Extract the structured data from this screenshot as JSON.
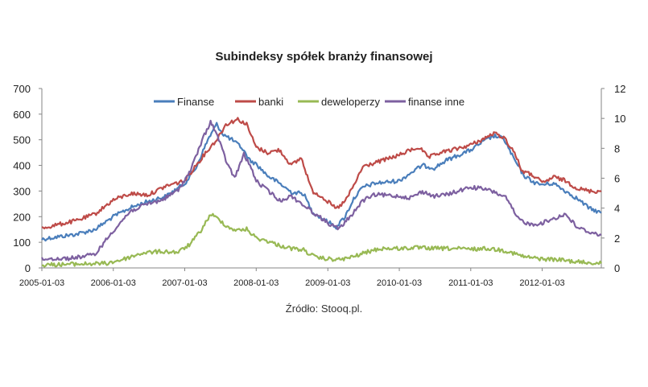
{
  "chart_data": {
    "type": "line",
    "title": "Subindeksy spółek branży finansowej",
    "source": "Źródło: Stooq.pl.",
    "xlabel": "",
    "ylabel": "",
    "x_ticks": [
      "2005-01-03",
      "2006-01-03",
      "2007-01-03",
      "2008-01-03",
      "2009-01-03",
      "2010-01-03",
      "2011-01-03",
      "2012-01-03"
    ],
    "y_left_ticks": [
      "0",
      "100",
      "200",
      "300",
      "400",
      "500",
      "600",
      "700"
    ],
    "y_right_ticks": [
      "0",
      "2",
      "4",
      "6",
      "8",
      "10",
      "12"
    ],
    "ylim_left": [
      0,
      700
    ],
    "ylim_right": [
      0,
      12
    ],
    "xlim": [
      "2005-01-03",
      "2012-10-31"
    ],
    "legend_position": "top-center",
    "grid": false,
    "series": [
      {
        "name": "Finanse",
        "axis": "left",
        "color": "#4a7ebb",
        "points": [
          [
            "2005-01-03",
            112
          ],
          [
            "2005-04-01",
            122
          ],
          [
            "2005-07-01",
            132
          ],
          [
            "2005-10-01",
            150
          ],
          [
            "2006-01-03",
            200
          ],
          [
            "2006-04-01",
            235
          ],
          [
            "2006-07-01",
            260
          ],
          [
            "2006-10-01",
            280
          ],
          [
            "2007-01-03",
            330
          ],
          [
            "2007-03-01",
            390
          ],
          [
            "2007-05-01",
            500
          ],
          [
            "2007-06-15",
            560
          ],
          [
            "2007-07-20",
            520
          ],
          [
            "2007-09-01",
            500
          ],
          [
            "2007-10-20",
            470
          ],
          [
            "2007-12-01",
            420
          ],
          [
            "2008-01-03",
            405
          ],
          [
            "2008-03-01",
            360
          ],
          [
            "2008-05-01",
            330
          ],
          [
            "2008-07-01",
            295
          ],
          [
            "2008-09-01",
            290
          ],
          [
            "2008-10-15",
            220
          ],
          [
            "2008-12-01",
            195
          ],
          [
            "2009-02-15",
            160
          ],
          [
            "2009-04-01",
            200
          ],
          [
            "2009-05-15",
            270
          ],
          [
            "2009-07-01",
            315
          ],
          [
            "2009-09-01",
            330
          ],
          [
            "2010-01-03",
            340
          ],
          [
            "2010-03-01",
            370
          ],
          [
            "2010-05-01",
            400
          ],
          [
            "2010-07-01",
            390
          ],
          [
            "2010-09-01",
            420
          ],
          [
            "2010-11-01",
            440
          ],
          [
            "2011-01-03",
            460
          ],
          [
            "2011-03-01",
            490
          ],
          [
            "2011-05-01",
            515
          ],
          [
            "2011-06-20",
            505
          ],
          [
            "2011-08-15",
            420
          ],
          [
            "2011-10-01",
            360
          ],
          [
            "2011-12-01",
            330
          ],
          [
            "2012-01-03",
            325
          ],
          [
            "2012-03-01",
            330
          ],
          [
            "2012-05-01",
            300
          ],
          [
            "2012-07-01",
            270
          ],
          [
            "2012-09-01",
            232
          ],
          [
            "2012-10-31",
            215
          ]
        ]
      },
      {
        "name": "banki",
        "axis": "left",
        "color": "#be4b48",
        "points": [
          [
            "2005-01-03",
            155
          ],
          [
            "2005-04-01",
            170
          ],
          [
            "2005-07-01",
            185
          ],
          [
            "2005-10-01",
            210
          ],
          [
            "2006-01-03",
            265
          ],
          [
            "2006-04-01",
            290
          ],
          [
            "2006-07-01",
            285
          ],
          [
            "2006-10-01",
            320
          ],
          [
            "2007-01-03",
            340
          ],
          [
            "2007-03-01",
            400
          ],
          [
            "2007-05-01",
            460
          ],
          [
            "2007-06-15",
            500
          ],
          [
            "2007-08-01",
            560
          ],
          [
            "2007-10-01",
            580
          ],
          [
            "2007-11-15",
            560
          ],
          [
            "2008-01-03",
            470
          ],
          [
            "2008-03-01",
            450
          ],
          [
            "2008-05-01",
            460
          ],
          [
            "2008-07-01",
            400
          ],
          [
            "2008-08-20",
            430
          ],
          [
            "2008-10-15",
            300
          ],
          [
            "2008-12-01",
            280
          ],
          [
            "2009-02-15",
            230
          ],
          [
            "2009-04-01",
            260
          ],
          [
            "2009-05-15",
            320
          ],
          [
            "2009-07-01",
            395
          ],
          [
            "2009-09-01",
            410
          ],
          [
            "2010-01-03",
            440
          ],
          [
            "2010-03-01",
            460
          ],
          [
            "2010-04-15",
            470
          ],
          [
            "2010-06-01",
            430
          ],
          [
            "2010-08-01",
            450
          ],
          [
            "2010-10-01",
            460
          ],
          [
            "2011-01-03",
            480
          ],
          [
            "2011-03-01",
            500
          ],
          [
            "2011-05-01",
            525
          ],
          [
            "2011-06-20",
            510
          ],
          [
            "2011-08-15",
            450
          ],
          [
            "2011-09-20",
            380
          ],
          [
            "2011-12-01",
            355
          ],
          [
            "2012-01-03",
            330
          ],
          [
            "2012-03-01",
            355
          ],
          [
            "2012-05-01",
            340
          ],
          [
            "2012-07-01",
            310
          ],
          [
            "2012-09-01",
            300
          ],
          [
            "2012-10-31",
            298
          ]
        ]
      },
      {
        "name": "deweloperzy",
        "axis": "right",
        "color": "#98b954",
        "points": [
          [
            "2005-01-03",
            0.2
          ],
          [
            "2005-06-01",
            0.25
          ],
          [
            "2005-12-01",
            0.3
          ],
          [
            "2006-03-01",
            0.6
          ],
          [
            "2006-06-01",
            1.0
          ],
          [
            "2006-09-01",
            1.1
          ],
          [
            "2006-12-01",
            1.05
          ],
          [
            "2007-02-01",
            1.6
          ],
          [
            "2007-04-01",
            2.6
          ],
          [
            "2007-05-15",
            3.6
          ],
          [
            "2007-07-01",
            3.2
          ],
          [
            "2007-08-15",
            2.7
          ],
          [
            "2007-10-01",
            2.5
          ],
          [
            "2007-11-15",
            2.6
          ],
          [
            "2008-01-03",
            2.0
          ],
          [
            "2008-03-01",
            1.8
          ],
          [
            "2008-05-01",
            1.5
          ],
          [
            "2008-07-01",
            1.3
          ],
          [
            "2008-09-01",
            1.2
          ],
          [
            "2008-11-01",
            0.7
          ],
          [
            "2009-01-03",
            0.6
          ],
          [
            "2009-03-01",
            0.55
          ],
          [
            "2009-05-01",
            0.7
          ],
          [
            "2009-08-01",
            1.1
          ],
          [
            "2009-10-01",
            1.3
          ],
          [
            "2010-01-03",
            1.3
          ],
          [
            "2010-04-01",
            1.35
          ],
          [
            "2010-07-01",
            1.3
          ],
          [
            "2010-10-01",
            1.3
          ],
          [
            "2011-01-03",
            1.25
          ],
          [
            "2011-04-01",
            1.3
          ],
          [
            "2011-07-01",
            1.15
          ],
          [
            "2011-10-01",
            0.75
          ],
          [
            "2012-01-03",
            0.6
          ],
          [
            "2012-04-01",
            0.55
          ],
          [
            "2012-07-01",
            0.4
          ],
          [
            "2012-10-31",
            0.3
          ]
        ]
      },
      {
        "name": "finanse inne",
        "axis": "right",
        "color": "#7d60a0",
        "points": [
          [
            "2005-01-03",
            0.6
          ],
          [
            "2005-06-01",
            0.65
          ],
          [
            "2005-10-01",
            0.9
          ],
          [
            "2006-01-03",
            2.5
          ],
          [
            "2006-04-01",
            3.8
          ],
          [
            "2006-07-01",
            4.3
          ],
          [
            "2006-09-01",
            4.5
          ],
          [
            "2006-12-01",
            5.2
          ],
          [
            "2007-02-01",
            6.5
          ],
          [
            "2007-04-01",
            8.5
          ],
          [
            "2007-05-15",
            9.8
          ],
          [
            "2007-06-20",
            8.8
          ],
          [
            "2007-08-01",
            7.2
          ],
          [
            "2007-09-15",
            6.0
          ],
          [
            "2007-11-01",
            7.6
          ],
          [
            "2007-12-15",
            6.5
          ],
          [
            "2008-01-03",
            5.8
          ],
          [
            "2008-03-01",
            5.2
          ],
          [
            "2008-05-01",
            4.5
          ],
          [
            "2008-07-01",
            4.8
          ],
          [
            "2008-09-01",
            4.2
          ],
          [
            "2008-11-01",
            3.6
          ],
          [
            "2009-01-03",
            3.0
          ],
          [
            "2009-03-01",
            2.6
          ],
          [
            "2009-05-01",
            3.5
          ],
          [
            "2009-07-01",
            4.5
          ],
          [
            "2009-09-01",
            4.9
          ],
          [
            "2010-01-03",
            4.8
          ],
          [
            "2010-03-01",
            4.7
          ],
          [
            "2010-05-01",
            5.1
          ],
          [
            "2010-07-01",
            4.8
          ],
          [
            "2010-09-01",
            4.9
          ],
          [
            "2011-01-03",
            5.4
          ],
          [
            "2011-03-01",
            5.3
          ],
          [
            "2011-05-01",
            5.1
          ],
          [
            "2011-07-01",
            4.7
          ],
          [
            "2011-09-01",
            3.3
          ],
          [
            "2011-11-01",
            2.9
          ],
          [
            "2012-01-03",
            3.0
          ],
          [
            "2012-03-01",
            3.3
          ],
          [
            "2012-05-01",
            3.6
          ],
          [
            "2012-07-01",
            2.7
          ],
          [
            "2012-09-01",
            2.4
          ],
          [
            "2012-10-31",
            2.2
          ]
        ]
      }
    ]
  }
}
